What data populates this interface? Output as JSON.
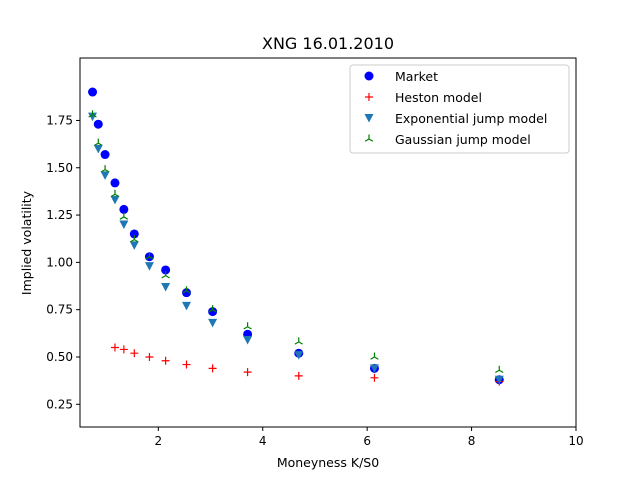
{
  "chart_data": {
    "type": "scatter",
    "title": "XNG 16.01.2010",
    "xlabel": "Moneyness K/S0",
    "ylabel": "Implied volatility",
    "xlim": [
      0.5,
      10
    ],
    "ylim": [
      0.13,
      2.08
    ],
    "xticks": [
      2,
      4,
      6,
      8,
      10
    ],
    "yticks": [
      0.25,
      0.5,
      0.75,
      1.0,
      1.25,
      1.5,
      1.75
    ],
    "xtick_labels": [
      "2",
      "4",
      "6",
      "8",
      "10"
    ],
    "ytick_labels": [
      "0.25",
      "0.50",
      "0.75",
      "1.00",
      "1.25",
      "1.50",
      "1.75"
    ],
    "grid": false,
    "legend_position": "upper-right",
    "series": [
      {
        "name": "Market",
        "marker": "circle",
        "color": "#0000ff",
        "x": [
          0.74,
          0.85,
          0.98,
          1.17,
          1.34,
          1.54,
          1.83,
          2.14,
          2.54,
          3.04,
          3.71,
          4.69,
          6.14,
          8.53
        ],
        "y": [
          1.9,
          1.73,
          1.57,
          1.42,
          1.28,
          1.15,
          1.03,
          0.96,
          0.84,
          0.74,
          0.62,
          0.52,
          0.44,
          0.38
        ]
      },
      {
        "name": "Heston model",
        "marker": "plus",
        "color": "#ff0000",
        "x": [
          1.17,
          1.34,
          1.54,
          1.83,
          2.14,
          2.54,
          3.04,
          3.71,
          4.69,
          6.14,
          8.53
        ],
        "y": [
          0.55,
          0.54,
          0.52,
          0.5,
          0.48,
          0.46,
          0.44,
          0.42,
          0.4,
          0.39,
          0.37
        ]
      },
      {
        "name": "Exponential jump model",
        "marker": "triangle-down",
        "color": "#1f77b4",
        "x": [
          0.74,
          0.85,
          0.98,
          1.17,
          1.34,
          1.54,
          1.83,
          2.14,
          2.54,
          3.04,
          3.71,
          4.69,
          6.14,
          8.53
        ],
        "y": [
          1.77,
          1.6,
          1.46,
          1.33,
          1.2,
          1.09,
          0.98,
          0.87,
          0.77,
          0.68,
          0.59,
          0.51,
          0.44,
          0.38
        ]
      },
      {
        "name": "Gaussian jump model",
        "marker": "tri-up",
        "color": "#008000",
        "x": [
          0.74,
          0.85,
          0.98,
          1.17,
          1.34,
          1.54,
          1.83,
          2.14,
          2.54,
          3.04,
          3.71,
          4.69,
          6.14,
          8.53
        ],
        "y": [
          1.78,
          1.63,
          1.49,
          1.36,
          1.24,
          1.12,
          1.03,
          0.93,
          0.85,
          0.75,
          0.66,
          0.58,
          0.5,
          0.43
        ]
      }
    ]
  }
}
